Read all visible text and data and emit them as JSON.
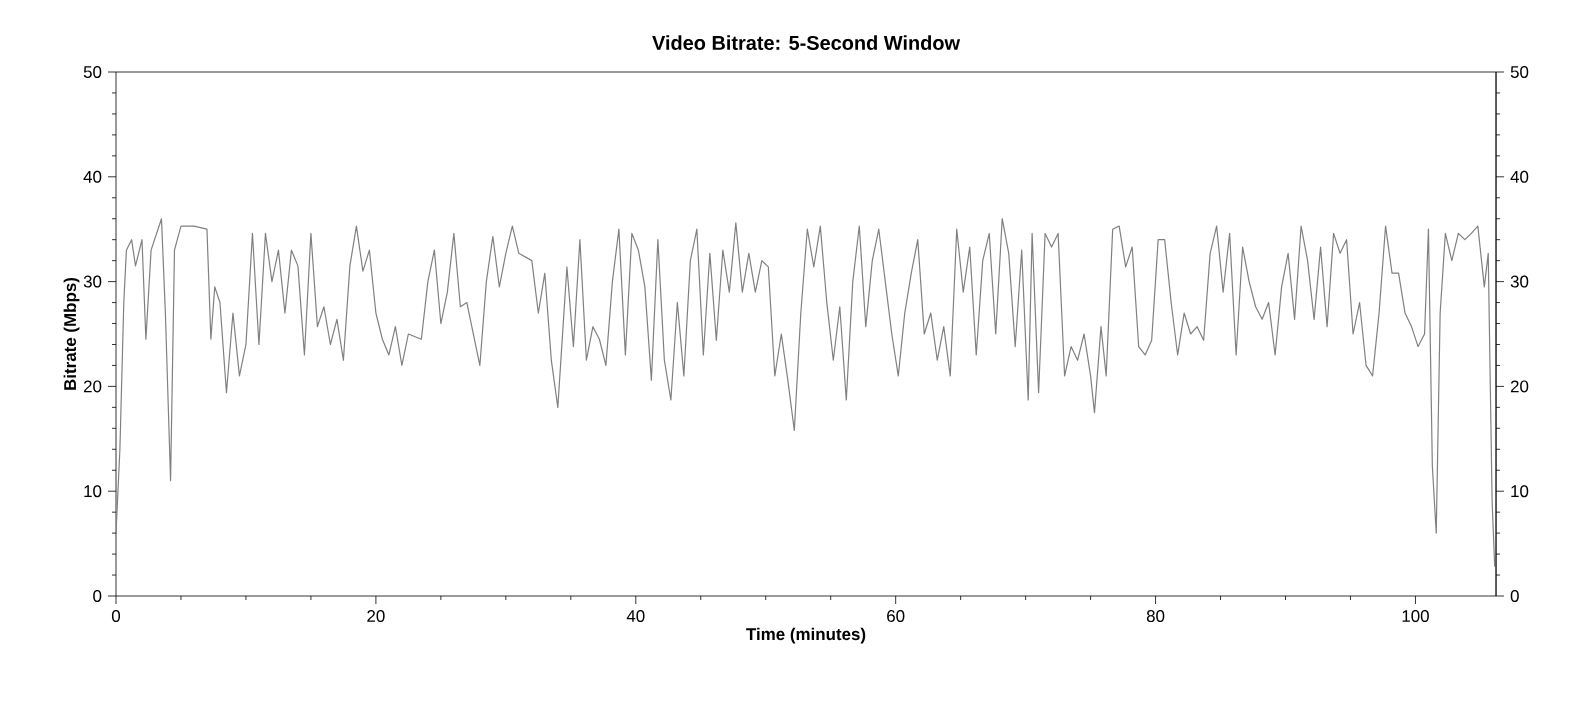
{
  "chart_data": {
    "type": "line",
    "title": "Video Bitrate: 5-Second Window",
    "xlabel": "Time (minutes)",
    "ylabel": "Bitrate (Mbps)",
    "x": [
      0,
      0.3,
      0.6,
      0.8,
      1.2,
      1.5,
      2,
      2.3,
      2.7,
      3.5,
      3.8,
      4.2,
      4.5,
      5,
      6,
      7,
      7.3,
      7.6,
      8,
      8.5,
      9,
      9.5,
      10,
      10.5,
      11,
      11.5,
      12,
      12.5,
      13,
      13.5,
      14,
      14.5,
      15,
      15.5,
      16,
      16.5,
      17,
      17.5,
      18,
      18.5,
      19,
      19.5,
      20,
      20.5,
      21,
      21.5,
      22,
      22.5,
      23.5,
      24,
      24.5,
      25,
      25.5,
      26,
      26.5,
      27,
      28,
      28.5,
      29,
      29.5,
      30,
      30.5,
      31,
      32,
      32.5,
      33,
      33.5,
      34,
      34.7,
      35.2,
      35.7,
      36.2,
      36.7,
      37.2,
      37.7,
      38.2,
      38.7,
      39.2,
      39.7,
      40.2,
      40.7,
      41.2,
      41.7,
      42.2,
      42.7,
      43.2,
      43.7,
      44.2,
      44.7,
      45.2,
      45.7,
      46.2,
      46.7,
      47.2,
      47.7,
      48.2,
      48.7,
      49.2,
      49.7,
      50.2,
      50.7,
      51.2,
      51.7,
      52.2,
      52.7,
      53.2,
      53.7,
      54.2,
      54.7,
      55.2,
      55.7,
      56.2,
      56.7,
      57.2,
      57.7,
      58.2,
      58.7,
      59.2,
      59.7,
      60.2,
      60.7,
      61.2,
      61.7,
      62.2,
      62.7,
      63.2,
      63.7,
      64.2,
      64.7,
      65.2,
      65.7,
      66.2,
      66.7,
      67.2,
      67.7,
      68.2,
      68.7,
      69.2,
      69.7,
      70.2,
      70.5,
      71,
      71.5,
      72,
      72.5,
      73,
      73.5,
      74,
      74.5,
      75,
      75.3,
      75.8,
      76.2,
      76.7,
      77.2,
      77.7,
      78.2,
      78.7,
      79.2,
      79.7,
      80.2,
      80.7,
      81.2,
      81.7,
      82.2,
      82.7,
      83.2,
      83.7,
      84.2,
      84.7,
      85.2,
      85.7,
      86.2,
      86.7,
      87.2,
      87.7,
      88.2,
      88.7,
      89.2,
      89.7,
      90.2,
      90.7,
      91.2,
      91.7,
      92.2,
      92.7,
      93.2,
      93.7,
      94.2,
      94.7,
      95.2,
      95.7,
      96.2,
      96.7,
      97.2,
      97.7,
      98.2,
      98.7,
      99.2,
      99.7,
      100.2,
      100.7,
      101,
      101.3,
      101.6,
      101.9,
      102.3,
      102.8,
      103.3,
      103.8,
      104.3,
      104.8,
      105.3,
      105.6,
      105.9,
      106.1
    ],
    "values": [
      6,
      14,
      28,
      33,
      34,
      31.5,
      34,
      24.5,
      33,
      36,
      27,
      11,
      33,
      35.3,
      35.3,
      35,
      24.5,
      29.5,
      28,
      19.4,
      27,
      21,
      24,
      34.6,
      24,
      34.6,
      30,
      33,
      27,
      33,
      31.5,
      23,
      34.6,
      25.7,
      27.6,
      24,
      26.4,
      22.5,
      31.5,
      35.3,
      31,
      33,
      27,
      24.5,
      23,
      25.7,
      22,
      25,
      24.5,
      30,
      33,
      26,
      29,
      34.6,
      27.6,
      28,
      22,
      30,
      34.3,
      29.5,
      32.7,
      35.3,
      32.7,
      32,
      27,
      30.8,
      22.5,
      18,
      31.4,
      23.8,
      34,
      22.5,
      25.7,
      24.5,
      22,
      30,
      35,
      23,
      34.6,
      33,
      29.5,
      20.6,
      34,
      22.5,
      18.7,
      28,
      21,
      32,
      35,
      23,
      32.7,
      24.4,
      33,
      29,
      35.6,
      29,
      32.7,
      29,
      32,
      31.4,
      21,
      25,
      20.6,
      15.8,
      27,
      35,
      31.4,
      35.3,
      28,
      22.5,
      27.6,
      18.7,
      30,
      35.3,
      25.7,
      32,
      35,
      30,
      25,
      21,
      27,
      30.8,
      34,
      25,
      27,
      22.5,
      25.7,
      21,
      35,
      29,
      33.3,
      23,
      32,
      34.6,
      25,
      36,
      32.7,
      23.8,
      33,
      18.7,
      34.6,
      19.4,
      34.6,
      33.3,
      34.6,
      21,
      23.8,
      22.5,
      25,
      21,
      17.5,
      25.7,
      21,
      35,
      35.3,
      31.4,
      33.3,
      23.8,
      23,
      24.4,
      34,
      34,
      28,
      23,
      27,
      25,
      25.7,
      24.4,
      32.7,
      35.3,
      29,
      34.6,
      23,
      33.3,
      30,
      27.6,
      26.4,
      28,
      23,
      29.5,
      32.7,
      26.4,
      35.3,
      32,
      26.4,
      33.3,
      25.7,
      34.6,
      32.7,
      34,
      25,
      28,
      22,
      21,
      27,
      35.3,
      30.8,
      30.8,
      27,
      25.7,
      23.8,
      25,
      35,
      12.4,
      6,
      27,
      34.6,
      32,
      34.6,
      34,
      34.6,
      35.3,
      29.5,
      32.7,
      9,
      2.8
    ],
    "color": "#808080",
    "marker": "none",
    "line_style": "solid",
    "xlim": [
      0,
      106.2
    ],
    "xticks": [
      0,
      20,
      40,
      60,
      80,
      100
    ],
    "ylim": [
      0,
      50
    ],
    "yticks": [
      0,
      10,
      20,
      30,
      40,
      50
    ],
    "y2lim": [
      0,
      50
    ],
    "y2ticks": [
      0,
      10,
      20,
      30,
      40,
      50
    ]
  }
}
